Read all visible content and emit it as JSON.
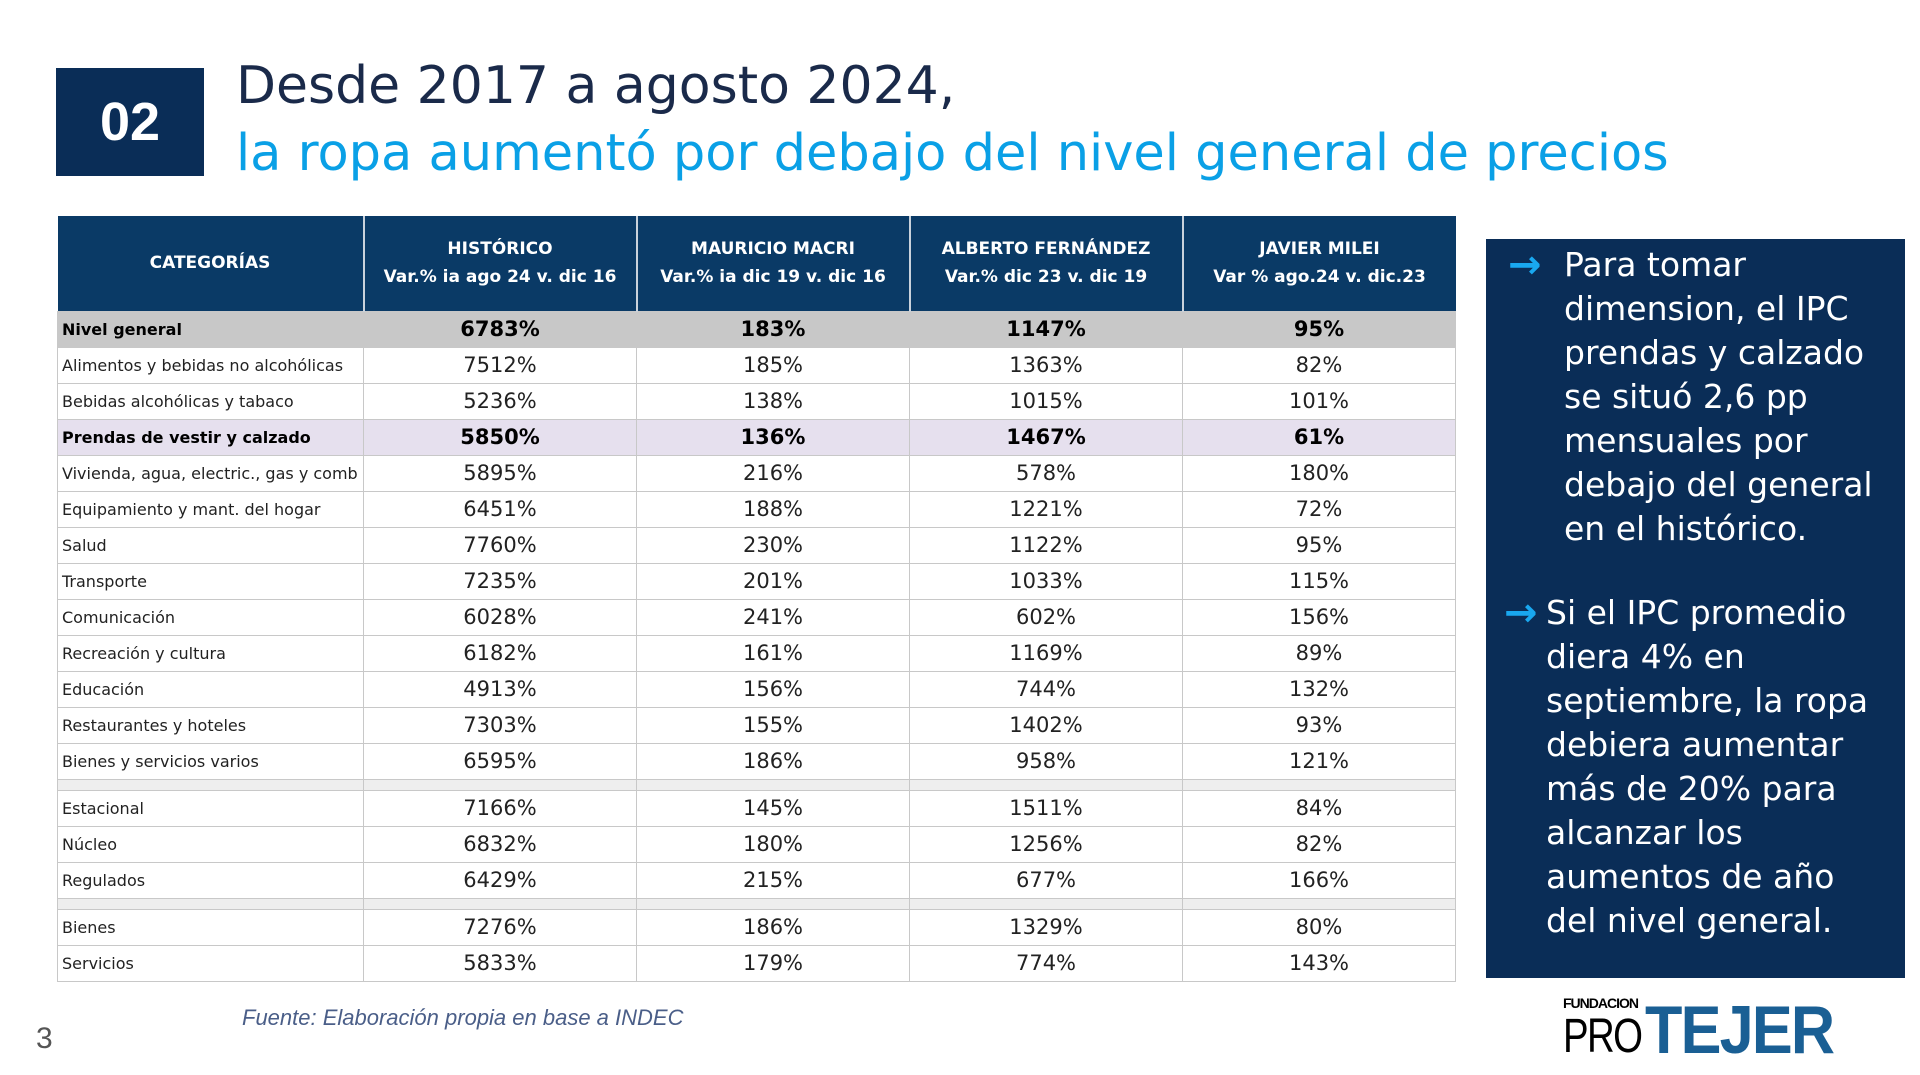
{
  "slide": {
    "number_badge": "02",
    "title_line1": "Desde 2017 a agosto 2024,",
    "title_line2": "la ropa aumentó por debajo del nivel general de precios",
    "page_number": "3",
    "source": "Fuente: Elaboración propia en base a INDEC",
    "logo_text": "FUNDACION PRO TEJER"
  },
  "table": {
    "headers": [
      {
        "title": "CATEGORÍAS",
        "sub": ""
      },
      {
        "title": "HISTÓRICO",
        "sub": "Var.% ia ago 24 v. dic 16"
      },
      {
        "title": "MAURICIO MACRI",
        "sub": "Var.% ia dic 19 v. dic 16"
      },
      {
        "title": "ALBERTO FERNÁNDEZ",
        "sub": "Var.% dic 23 v. dic 19"
      },
      {
        "title": "JAVIER MILEI",
        "sub": "Var % ago.24 v. dic.23"
      }
    ],
    "rows": [
      [
        "Nivel general",
        "6783%",
        "183%",
        "1147%",
        "95%"
      ],
      [
        "Alimentos y bebidas no alcohólicas",
        "7512%",
        "185%",
        "1363%",
        "82%"
      ],
      [
        "Bebidas alcohólicas y tabaco",
        "5236%",
        "138%",
        "1015%",
        "101%"
      ],
      [
        "Prendas de vestir y calzado",
        "5850%",
        "136%",
        "1467%",
        "61%"
      ],
      [
        "Vivienda, agua, electric., gas y comb",
        "5895%",
        "216%",
        "578%",
        "180%"
      ],
      [
        "Equipamiento y mant. del hogar",
        "6451%",
        "188%",
        "1221%",
        "72%"
      ],
      [
        "Salud",
        "7760%",
        "230%",
        "1122%",
        "95%"
      ],
      [
        "Transporte",
        "7235%",
        "201%",
        "1033%",
        "115%"
      ],
      [
        "Comunicación",
        "6028%",
        "241%",
        "602%",
        "156%"
      ],
      [
        "Recreación y cultura",
        "6182%",
        "161%",
        "1169%",
        "89%"
      ],
      [
        "Educación",
        "4913%",
        "156%",
        "744%",
        "132%"
      ],
      [
        "Restaurantes y hoteles",
        "7303%",
        "155%",
        "1402%",
        "93%"
      ],
      [
        "Bienes y servicios varios",
        "6595%",
        "186%",
        "958%",
        "121%"
      ],
      [
        "Estacional",
        "7166%",
        "145%",
        "1511%",
        "84%"
      ],
      [
        "Núcleo",
        "6832%",
        "180%",
        "1256%",
        "82%"
      ],
      [
        "Regulados",
        "6429%",
        "215%",
        "677%",
        "166%"
      ],
      [
        "Bienes",
        "7276%",
        "186%",
        "1329%",
        "80%"
      ],
      [
        "Servicios",
        "5833%",
        "179%",
        "774%",
        "143%"
      ]
    ]
  },
  "panel": {
    "bullets": [
      "Para tomar dimension, el IPC prendas y calzado se situó 2,6 pp mensuales por debajo del general en el histórico.",
      "Si el IPC promedio diera 4% en septiembre, la ropa debiera aumentar más de 20% para alcanzar los aumentos de año del nivel general."
    ],
    "arrow_icon": "arrow-right-icon"
  },
  "colors": {
    "navy": "#0a2d57",
    "accent": "#0aa0e6",
    "highlight_row": "#e6e0ee",
    "general_row": "#c8c8c8"
  }
}
